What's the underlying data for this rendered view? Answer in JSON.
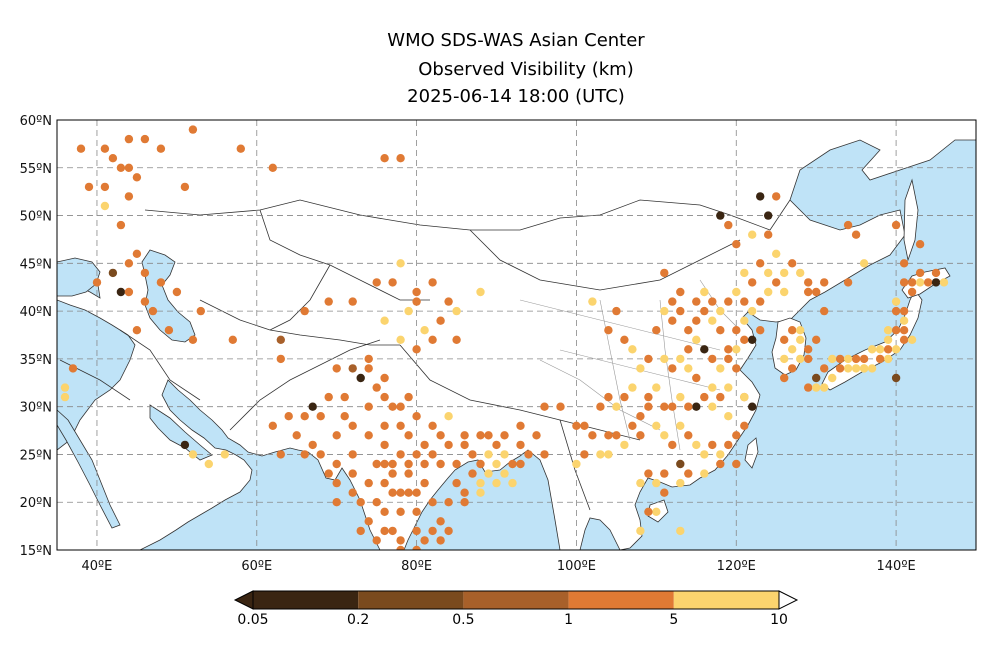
{
  "title": {
    "line1": "WMO SDS-WAS Asian Center",
    "line2": "Observed Visibility (km)",
    "line3": "2025-06-14 18:00 (UTC)"
  },
  "map": {
    "lon_range": [
      35,
      150
    ],
    "lat_range": [
      15,
      60
    ],
    "lon_ticks": [
      "40ºE",
      "60ºE",
      "80ºE",
      "100ºE",
      "120ºE",
      "140ºE"
    ],
    "lat_ticks": [
      "15ºN",
      "20ºN",
      "25ºN",
      "30ºN",
      "35ºN",
      "40ºN",
      "45ºN",
      "50ºN",
      "55ºN",
      "60ºN"
    ],
    "ocean_color": "#bfe3f7",
    "land_color": "#ffffff",
    "grid": true
  },
  "colorbar": {
    "labels": [
      "0.05",
      "0.2",
      "0.5",
      "1",
      "5",
      "10"
    ],
    "colors": [
      "#3a2512",
      "#7a4a1e",
      "#a8602a",
      "#e07a34",
      "#fbd46e"
    ]
  },
  "stations": [
    [
      38,
      57,
      3
    ],
    [
      41,
      57,
      3
    ],
    [
      42,
      56,
      3
    ],
    [
      39,
      53,
      3
    ],
    [
      41,
      53,
      3
    ],
    [
      43,
      55,
      3
    ],
    [
      44,
      58,
      3
    ],
    [
      46,
      58,
      3
    ],
    [
      44,
      55,
      3
    ],
    [
      45,
      54,
      3
    ],
    [
      44,
      52,
      3
    ],
    [
      48,
      57,
      3
    ],
    [
      52,
      59,
      3
    ],
    [
      58,
      57,
      3
    ],
    [
      41,
      51,
      4
    ],
    [
      51,
      53,
      3
    ],
    [
      43,
      49,
      3
    ],
    [
      62,
      55,
      3
    ],
    [
      76,
      56,
      3
    ],
    [
      78,
      56,
      3
    ],
    [
      45,
      46,
      3
    ],
    [
      44,
      45,
      3
    ],
    [
      46,
      44,
      3
    ],
    [
      42,
      44,
      1
    ],
    [
      43,
      42,
      0
    ],
    [
      44,
      42,
      3
    ],
    [
      46,
      41,
      3
    ],
    [
      40,
      43,
      3
    ],
    [
      48,
      43,
      3
    ],
    [
      50,
      42,
      3
    ],
    [
      47,
      40,
      3
    ],
    [
      53,
      40,
      3
    ],
    [
      49,
      38,
      3
    ],
    [
      45,
      38,
      3
    ],
    [
      52,
      37,
      3
    ],
    [
      57,
      37,
      3
    ],
    [
      36,
      32,
      4
    ],
    [
      36,
      31,
      4
    ],
    [
      37,
      34,
      3
    ],
    [
      63,
      37,
      2
    ],
    [
      66,
      40,
      3
    ],
    [
      69,
      41,
      3
    ],
    [
      72,
      41,
      3
    ],
    [
      75,
      43,
      3
    ],
    [
      77,
      43,
      3
    ],
    [
      78,
      45,
      4
    ],
    [
      80,
      42,
      3
    ],
    [
      82,
      43,
      3
    ],
    [
      84,
      41,
      3
    ],
    [
      76,
      39,
      4
    ],
    [
      79,
      40,
      4
    ],
    [
      80,
      41,
      3
    ],
    [
      81,
      38,
      4
    ],
    [
      85,
      40,
      4
    ],
    [
      85,
      37,
      3
    ],
    [
      82,
      37,
      3
    ],
    [
      83,
      39,
      3
    ],
    [
      88,
      42,
      4
    ],
    [
      102,
      41,
      4
    ],
    [
      78,
      37,
      4
    ],
    [
      80,
      36,
      3
    ],
    [
      67,
      30,
      0
    ],
    [
      63,
      35,
      3
    ],
    [
      70,
      34,
      3
    ],
    [
      72,
      34,
      2
    ],
    [
      73,
      33,
      0
    ],
    [
      74,
      34,
      3
    ],
    [
      75,
      32,
      3
    ],
    [
      76,
      31,
      3
    ],
    [
      77,
      30,
      3
    ],
    [
      78,
      28,
      3
    ],
    [
      74,
      30,
      3
    ],
    [
      72,
      28,
      3
    ],
    [
      70,
      27,
      3
    ],
    [
      68,
      29,
      3
    ],
    [
      66,
      29,
      3
    ],
    [
      64,
      29,
      3
    ],
    [
      62,
      28,
      3
    ],
    [
      63,
      25,
      3
    ],
    [
      66,
      25,
      3
    ],
    [
      68,
      25,
      3
    ],
    [
      70,
      24,
      3
    ],
    [
      72,
      23,
      3
    ],
    [
      74,
      22,
      3
    ],
    [
      73,
      20,
      3
    ],
    [
      74,
      18,
      3
    ],
    [
      76,
      19,
      3
    ],
    [
      77,
      17,
      3
    ],
    [
      78,
      16,
      3
    ],
    [
      80,
      17,
      3
    ],
    [
      80,
      15,
      3
    ],
    [
      82,
      17,
      3
    ],
    [
      83,
      18,
      3
    ],
    [
      84,
      20,
      3
    ],
    [
      86,
      20,
      3
    ],
    [
      85,
      22,
      3
    ],
    [
      87,
      23,
      3
    ],
    [
      88,
      22,
      4
    ],
    [
      88,
      24,
      3
    ],
    [
      89,
      25,
      4
    ],
    [
      90,
      24,
      4
    ],
    [
      91,
      23,
      4
    ],
    [
      92,
      24,
      3
    ],
    [
      93,
      26,
      3
    ],
    [
      91,
      27,
      3
    ],
    [
      89,
      27,
      3
    ],
    [
      86,
      26,
      3
    ],
    [
      84,
      26,
      3
    ],
    [
      82,
      25,
      3
    ],
    [
      80,
      25,
      3
    ],
    [
      79,
      27,
      3
    ],
    [
      78,
      25,
      3
    ],
    [
      76,
      26,
      3
    ],
    [
      75,
      24,
      3
    ],
    [
      77,
      23,
      3
    ],
    [
      79,
      23,
      3
    ],
    [
      81,
      22,
      3
    ],
    [
      79,
      21,
      3
    ],
    [
      77,
      21,
      3
    ],
    [
      80,
      19,
      3
    ],
    [
      82,
      20,
      3
    ],
    [
      78,
      19,
      3
    ],
    [
      75,
      20,
      3
    ],
    [
      72,
      25,
      3
    ],
    [
      70,
      22,
      3
    ],
    [
      69,
      23,
      3
    ],
    [
      72,
      21,
      3
    ],
    [
      74,
      27,
      3
    ],
    [
      76,
      28,
      3
    ],
    [
      78,
      30,
      3
    ],
    [
      80,
      29,
      3
    ],
    [
      82,
      28,
      3
    ],
    [
      84,
      29,
      4
    ],
    [
      86,
      27,
      3
    ],
    [
      88,
      27,
      3
    ],
    [
      90,
      26,
      3
    ],
    [
      93,
      28,
      3
    ],
    [
      95,
      27,
      3
    ],
    [
      96,
      25,
      3
    ],
    [
      94,
      25,
      3
    ],
    [
      93,
      24,
      3
    ],
    [
      91,
      25,
      4
    ],
    [
      92,
      22,
      4
    ],
    [
      90,
      22,
      4
    ],
    [
      89,
      23,
      4
    ],
    [
      88,
      21,
      4
    ],
    [
      86,
      21,
      3
    ],
    [
      87,
      25,
      3
    ],
    [
      83,
      24,
      3
    ],
    [
      85,
      24,
      3
    ],
    [
      81,
      24,
      3
    ],
    [
      79,
      24,
      3
    ],
    [
      77,
      24,
      3
    ],
    [
      81,
      26,
      3
    ],
    [
      83,
      27,
      3
    ],
    [
      79,
      31,
      3
    ],
    [
      76,
      33,
      3
    ],
    [
      74,
      35,
      3
    ],
    [
      71,
      31,
      3
    ],
    [
      69,
      31,
      3
    ],
    [
      71,
      29,
      3
    ],
    [
      67,
      26,
      3
    ],
    [
      65,
      27,
      3
    ],
    [
      70,
      20,
      3
    ],
    [
      73,
      17,
      3
    ],
    [
      75,
      16,
      3
    ],
    [
      76,
      17,
      3
    ],
    [
      78,
      15,
      3
    ],
    [
      81,
      16,
      3
    ],
    [
      83,
      16,
      3
    ],
    [
      84,
      17,
      3
    ],
    [
      78,
      21,
      3
    ],
    [
      80,
      21,
      3
    ],
    [
      76,
      22,
      3
    ],
    [
      76,
      24,
      3
    ],
    [
      51,
      26,
      0
    ],
    [
      52,
      25,
      4
    ],
    [
      56,
      25,
      4
    ],
    [
      54,
      24,
      4
    ],
    [
      96,
      30,
      3
    ],
    [
      98,
      30,
      3
    ],
    [
      100,
      28,
      3
    ],
    [
      101,
      28,
      3
    ],
    [
      102,
      27,
      3
    ],
    [
      104,
      27,
      3
    ],
    [
      101,
      25,
      3
    ],
    [
      100,
      24,
      4
    ],
    [
      103,
      25,
      4
    ],
    [
      104,
      25,
      4
    ],
    [
      105,
      27,
      3
    ],
    [
      106,
      26,
      4
    ],
    [
      107,
      28,
      3
    ],
    [
      108,
      27,
      3
    ],
    [
      108,
      29,
      3
    ],
    [
      109,
      30,
      3
    ],
    [
      110,
      28,
      4
    ],
    [
      111,
      27,
      4
    ],
    [
      112,
      26,
      3
    ],
    [
      113,
      28,
      4
    ],
    [
      114,
      27,
      3
    ],
    [
      115,
      26,
      4
    ],
    [
      116,
      25,
      4
    ],
    [
      117,
      26,
      3
    ],
    [
      118,
      25,
      4
    ],
    [
      119,
      26,
      3
    ],
    [
      120,
      27,
      3
    ],
    [
      121,
      28,
      3
    ],
    [
      122,
      30,
      0
    ],
    [
      121,
      31,
      3
    ],
    [
      119,
      32,
      4
    ],
    [
      118,
      31,
      3
    ],
    [
      117,
      30,
      4
    ],
    [
      116,
      31,
      3
    ],
    [
      115,
      30,
      0
    ],
    [
      114,
      30,
      3
    ],
    [
      113,
      31,
      4
    ],
    [
      112,
      30,
      3
    ],
    [
      111,
      30,
      3
    ],
    [
      110,
      32,
      4
    ],
    [
      109,
      31,
      3
    ],
    [
      107,
      32,
      4
    ],
    [
      106,
      31,
      3
    ],
    [
      105,
      30,
      4
    ],
    [
      104,
      31,
      3
    ],
    [
      103,
      30,
      3
    ],
    [
      108,
      34,
      4
    ],
    [
      109,
      35,
      3
    ],
    [
      111,
      35,
      4
    ],
    [
      112,
      34,
      3
    ],
    [
      113,
      35,
      4
    ],
    [
      114,
      36,
      3
    ],
    [
      115,
      37,
      4
    ],
    [
      116,
      36,
      0
    ],
    [
      117,
      35,
      3
    ],
    [
      118,
      34,
      4
    ],
    [
      119,
      35,
      3
    ],
    [
      120,
      34,
      3
    ],
    [
      120,
      36,
      4
    ],
    [
      121,
      37,
      3
    ],
    [
      122,
      37,
      0
    ],
    [
      118,
      38,
      3
    ],
    [
      117,
      39,
      4
    ],
    [
      116,
      40,
      3
    ],
    [
      115,
      39,
      3
    ],
    [
      114,
      38,
      3
    ],
    [
      113,
      40,
      3
    ],
    [
      112,
      39,
      3
    ],
    [
      111,
      40,
      4
    ],
    [
      112,
      41,
      3
    ],
    [
      113,
      42,
      3
    ],
    [
      115,
      41,
      3
    ],
    [
      116,
      42,
      4
    ],
    [
      117,
      41,
      3
    ],
    [
      118,
      40,
      4
    ],
    [
      119,
      41,
      3
    ],
    [
      120,
      42,
      4
    ],
    [
      121,
      41,
      3
    ],
    [
      122,
      40,
      4
    ],
    [
      123,
      41,
      3
    ],
    [
      124,
      42,
      4
    ],
    [
      125,
      43,
      3
    ],
    [
      126,
      44,
      4
    ],
    [
      127,
      45,
      3
    ],
    [
      128,
      44,
      4
    ],
    [
      129,
      43,
      3
    ],
    [
      126,
      42,
      4
    ],
    [
      124,
      44,
      4
    ],
    [
      122,
      43,
      3
    ],
    [
      121,
      44,
      4
    ],
    [
      123,
      45,
      3
    ],
    [
      125,
      46,
      4
    ],
    [
      124,
      48,
      3
    ],
    [
      122,
      48,
      4
    ],
    [
      120,
      47,
      3
    ],
    [
      119,
      49,
      3
    ],
    [
      124,
      50,
      0
    ],
    [
      125,
      52,
      3
    ],
    [
      123,
      52,
      0
    ],
    [
      118,
      50,
      0
    ],
    [
      111,
      44,
      3
    ],
    [
      105,
      40,
      3
    ],
    [
      104,
      38,
      3
    ],
    [
      106,
      37,
      3
    ],
    [
      107,
      36,
      4
    ],
    [
      110,
      38,
      3
    ],
    [
      114,
      34,
      4
    ],
    [
      115,
      33,
      3
    ],
    [
      117,
      32,
      4
    ],
    [
      119,
      29,
      4
    ],
    [
      120,
      24,
      3
    ],
    [
      113,
      24,
      1
    ],
    [
      111,
      23,
      3
    ],
    [
      110,
      22,
      4
    ],
    [
      109,
      23,
      3
    ],
    [
      108,
      22,
      4
    ],
    [
      111,
      21,
      3
    ],
    [
      113,
      22,
      4
    ],
    [
      114,
      23,
      3
    ],
    [
      116,
      23,
      4
    ],
    [
      118,
      24,
      3
    ],
    [
      110,
      19,
      4
    ],
    [
      109,
      19,
      3
    ],
    [
      108,
      17,
      4
    ],
    [
      113,
      17,
      4
    ],
    [
      121,
      31,
      4
    ],
    [
      119,
      36,
      3
    ],
    [
      120,
      38,
      3
    ],
    [
      121,
      39,
      4
    ],
    [
      123,
      38,
      3
    ],
    [
      126,
      37,
      3
    ],
    [
      127,
      36,
      4
    ],
    [
      128,
      35,
      4
    ],
    [
      129,
      35,
      3
    ],
    [
      126,
      35,
      4
    ],
    [
      127,
      34,
      3
    ],
    [
      126,
      33,
      3
    ],
    [
      128,
      37,
      4
    ],
    [
      127,
      38,
      3
    ],
    [
      128,
      38,
      4
    ],
    [
      129,
      36,
      3
    ],
    [
      130,
      33,
      1
    ],
    [
      129,
      32,
      3
    ],
    [
      130,
      32,
      4
    ],
    [
      131,
      32,
      4
    ],
    [
      131,
      34,
      3
    ],
    [
      132,
      35,
      4
    ],
    [
      133,
      35,
      3
    ],
    [
      134,
      35,
      4
    ],
    [
      135,
      34,
      4
    ],
    [
      136,
      35,
      3
    ],
    [
      137,
      36,
      4
    ],
    [
      138,
      36,
      4
    ],
    [
      139,
      36,
      3
    ],
    [
      140,
      36,
      4
    ],
    [
      139,
      35,
      4
    ],
    [
      138,
      35,
      3
    ],
    [
      137,
      34,
      4
    ],
    [
      136,
      34,
      4
    ],
    [
      135,
      35,
      3
    ],
    [
      134,
      34,
      4
    ],
    [
      133,
      34,
      3
    ],
    [
      132,
      33,
      4
    ],
    [
      141,
      39,
      4
    ],
    [
      141,
      40,
      3
    ],
    [
      140,
      40,
      3
    ],
    [
      139,
      38,
      4
    ],
    [
      140,
      38,
      3
    ],
    [
      141,
      38,
      3
    ],
    [
      142,
      43,
      3
    ],
    [
      141,
      43,
      3
    ],
    [
      143,
      43,
      4
    ],
    [
      144,
      43,
      3
    ],
    [
      145,
      43,
      0
    ],
    [
      143,
      44,
      3
    ],
    [
      141,
      45,
      3
    ],
    [
      136,
      45,
      4
    ],
    [
      134,
      43,
      3
    ],
    [
      135,
      48,
      3
    ],
    [
      131,
      43,
      3
    ],
    [
      129,
      42,
      3
    ],
    [
      130,
      42,
      3
    ],
    [
      131,
      40,
      3
    ],
    [
      134,
      49,
      3
    ],
    [
      140,
      49,
      3
    ],
    [
      143,
      47,
      3
    ],
    [
      145,
      44,
      3
    ],
    [
      140,
      33,
      1
    ],
    [
      136,
      34,
      4
    ],
    [
      140,
      41,
      4
    ],
    [
      142,
      42,
      3
    ],
    [
      146,
      43,
      4
    ],
    [
      130,
      37,
      3
    ],
    [
      141,
      37,
      3
    ],
    [
      142,
      37,
      4
    ],
    [
      139,
      37,
      4
    ]
  ]
}
